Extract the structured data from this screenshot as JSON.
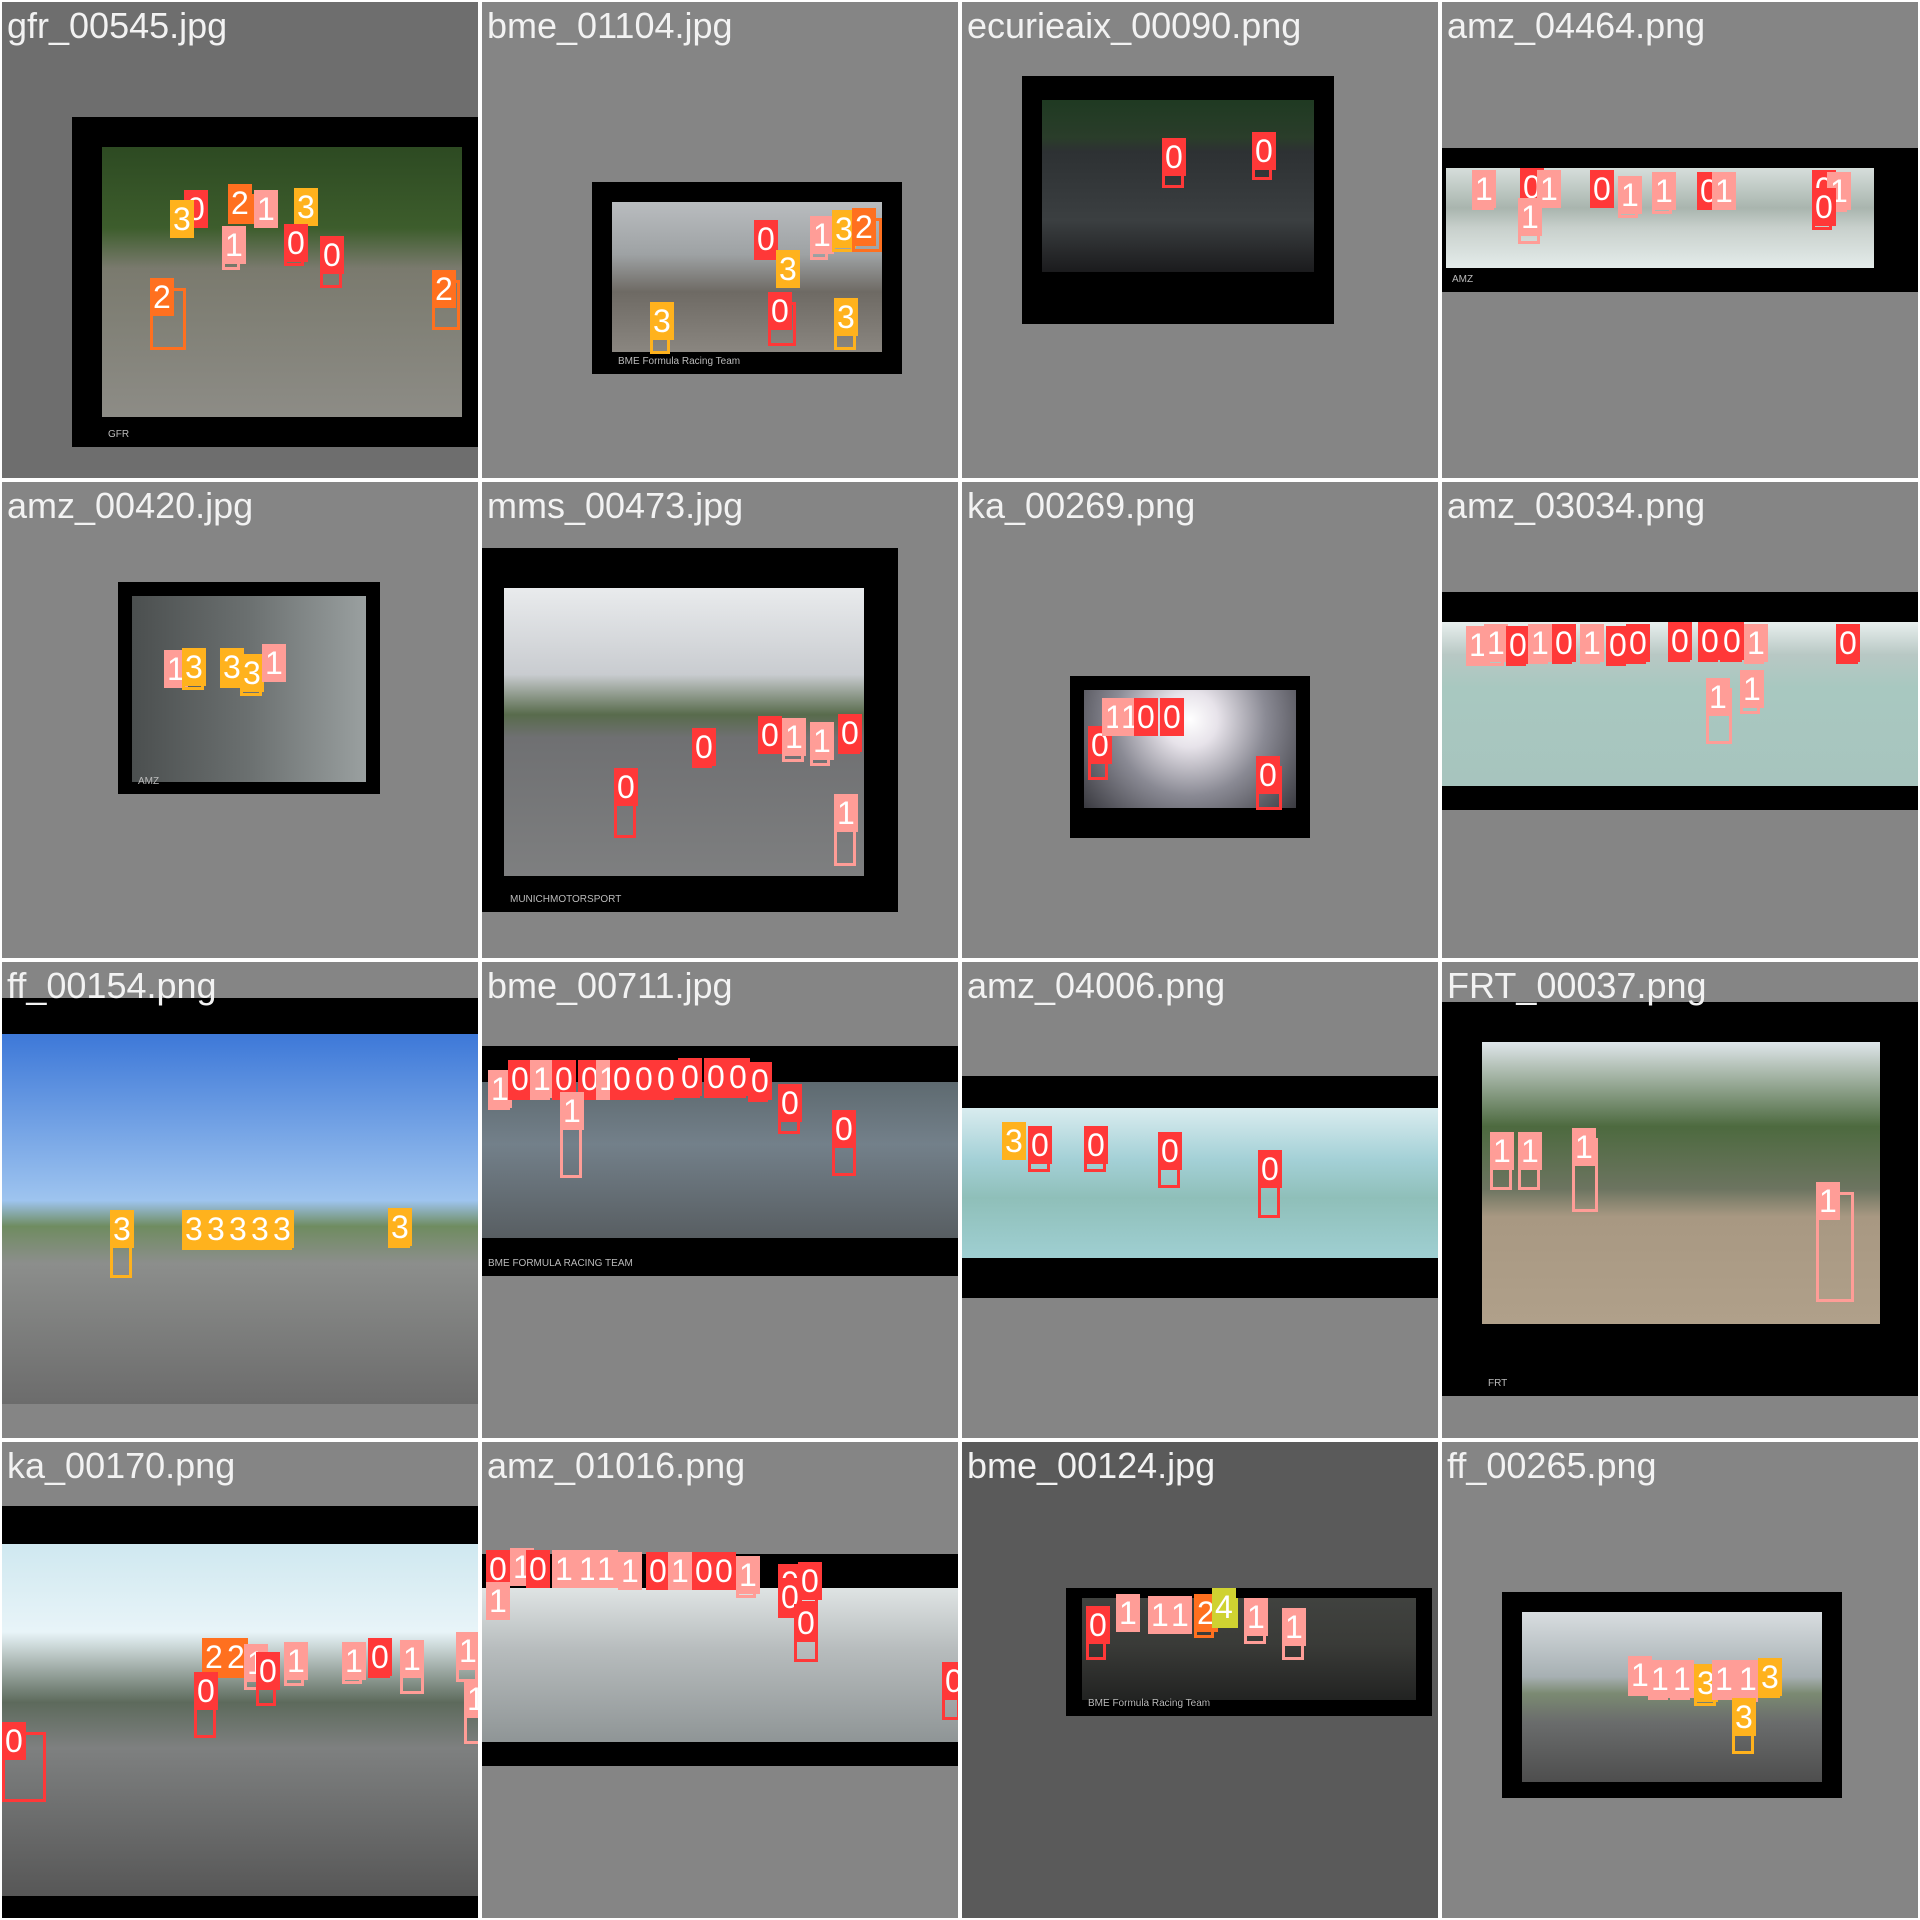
{
  "colors": {
    "class_0": "#ff3838",
    "class_1": "#ff9d97",
    "class_2": "#ff701f",
    "class_3": "#ffb21d",
    "class_4": "#cfd231"
  },
  "tiles": [
    {
      "file": "gfr_00545.jpg",
      "bg": "#6e6e6e",
      "frame": [
        70,
        115,
        410,
        330
      ],
      "photo": [
        100,
        145,
        360,
        270
      ],
      "scene": "trees",
      "wm": "GFR",
      "dets": [
        [
          "0",
          182,
          198,
          22,
          26
        ],
        [
          "2",
          226,
          192,
          26,
          30
        ],
        [
          "1",
          252,
          198,
          22,
          24
        ],
        [
          "3",
          292,
          196,
          22,
          28
        ],
        [
          "0",
          282,
          232,
          20,
          32
        ],
        [
          "0",
          318,
          244,
          22,
          42
        ],
        [
          "2",
          148,
          286,
          36,
          62
        ],
        [
          "2",
          430,
          278,
          28,
          50
        ],
        [
          "3",
          168,
          208,
          16,
          26
        ],
        [
          "1",
          220,
          234,
          18,
          34
        ]
      ]
    },
    {
      "file": "bme_01104.jpg",
      "bg": "#858585",
      "frame": [
        110,
        180,
        310,
        192
      ],
      "photo": [
        130,
        200,
        270,
        150
      ],
      "scene": "warehouse",
      "wm": "BME Formula Racing Team",
      "dets": [
        [
          "0",
          272,
          228,
          24,
          30
        ],
        [
          "3",
          294,
          258,
          22,
          28
        ],
        [
          "0",
          286,
          300,
          28,
          44
        ],
        [
          "3",
          168,
          310,
          20,
          42
        ],
        [
          "3",
          352,
          306,
          22,
          42
        ],
        [
          "1",
          328,
          224,
          18,
          34
        ],
        [
          "3",
          350,
          218,
          22,
          32
        ],
        [
          "2",
          370,
          216,
          30,
          34
        ]
      ]
    },
    {
      "file": "ecurieaix_00090.png",
      "bg": "#858585",
      "frame": [
        60,
        74,
        312,
        248
      ],
      "photo": [
        80,
        98,
        272,
        172
      ],
      "scene": "track",
      "wm": "",
      "dets": [
        [
          "0",
          200,
          146,
          22,
          40
        ],
        [
          "0",
          290,
          140,
          20,
          38
        ]
      ]
    },
    {
      "file": "amz_04464.png",
      "bg": "#858585",
      "frame": [
        0,
        146,
        476,
        144
      ],
      "photo": [
        4,
        166,
        428,
        100
      ],
      "scene": "wide",
      "wm": "AMZ",
      "dets": [
        [
          "1",
          30,
          178,
          22,
          30
        ],
        [
          "0",
          78,
          176,
          20,
          28
        ],
        [
          "1",
          95,
          178,
          20,
          28
        ],
        [
          "0",
          148,
          178,
          20,
          28
        ],
        [
          "1",
          176,
          184,
          20,
          32
        ],
        [
          "1",
          210,
          180,
          20,
          32
        ],
        [
          "0",
          255,
          180,
          22,
          28
        ],
        [
          "1",
          270,
          180,
          20,
          28
        ],
        [
          "0",
          370,
          178,
          22,
          34
        ],
        [
          "1",
          385,
          180,
          20,
          30
        ],
        [
          "1",
          76,
          206,
          22,
          36
        ],
        [
          "0",
          370,
          196,
          20,
          32
        ]
      ]
    },
    {
      "file": "amz_00420.jpg",
      "bg": "#858585",
      "frame": [
        116,
        100,
        262,
        212
      ],
      "photo": [
        130,
        114,
        234,
        186
      ],
      "scene": "building",
      "wm": "AMZ",
      "dets": [
        [
          "1",
          162,
          178,
          22,
          28
        ],
        [
          "3",
          180,
          176,
          22,
          32
        ],
        [
          "3",
          218,
          176,
          24,
          30
        ],
        [
          "3",
          238,
          182,
          22,
          32
        ],
        [
          "1",
          260,
          172,
          22,
          28
        ]
      ]
    },
    {
      "file": "mms_00473.jpg",
      "bg": "#858585",
      "frame": [
        0,
        66,
        416,
        364
      ],
      "photo": [
        22,
        106,
        360,
        288
      ],
      "scene": "field",
      "wm": "MUNICHMOTORSPORT",
      "dets": [
        [
          "0",
          210,
          256,
          20,
          30
        ],
        [
          "0",
          276,
          244,
          22,
          28
        ],
        [
          "1",
          300,
          246,
          22,
          34
        ],
        [
          "1",
          328,
          250,
          20,
          34
        ],
        [
          "0",
          356,
          242,
          22,
          30
        ],
        [
          "0",
          132,
          296,
          22,
          60
        ],
        [
          "1",
          352,
          322,
          22,
          62
        ]
      ]
    },
    {
      "file": "ka_00269.png",
      "bg": "#858585",
      "frame": [
        108,
        194,
        240,
        162
      ],
      "photo": [
        122,
        208,
        212,
        118
      ],
      "scene": "sun",
      "wm": "",
      "dets": [
        [
          "0",
          126,
          254,
          20,
          44
        ],
        [
          "1",
          140,
          226,
          18,
          26
        ],
        [
          "1",
          156,
          226,
          18,
          26
        ],
        [
          "0",
          172,
          226,
          20,
          26
        ],
        [
          "0",
          198,
          226,
          22,
          26
        ],
        [
          "0",
          294,
          284,
          26,
          44
        ]
      ]
    },
    {
      "file": "amz_03034.png",
      "bg": "#858585",
      "frame": [
        0,
        110,
        476,
        218
      ],
      "photo": [
        0,
        140,
        476,
        164
      ],
      "scene": "wide2",
      "wm": "",
      "dets": [
        [
          "1",
          24,
          154,
          22,
          30
        ],
        [
          "1",
          42,
          152,
          20,
          32
        ],
        [
          "0",
          64,
          154,
          20,
          30
        ],
        [
          "1",
          86,
          152,
          20,
          30
        ],
        [
          "0",
          110,
          152,
          20,
          30
        ],
        [
          "1",
          138,
          152,
          20,
          30
        ],
        [
          "0",
          164,
          154,
          20,
          30
        ],
        [
          "0",
          184,
          152,
          20,
          30
        ],
        [
          "0",
          226,
          150,
          22,
          30
        ],
        [
          "0",
          256,
          150,
          20,
          30
        ],
        [
          "0",
          278,
          150,
          22,
          30
        ],
        [
          "1",
          302,
          152,
          20,
          30
        ],
        [
          "1",
          298,
          198,
          20,
          34
        ],
        [
          "0",
          394,
          152,
          22,
          30
        ],
        [
          "1",
          264,
          206,
          26,
          56
        ]
      ]
    },
    {
      "file": "ff_00154.png",
      "bg": "#858585",
      "frame": [
        0,
        36,
        476,
        406
      ],
      "photo": [
        0,
        72,
        476,
        370
      ],
      "scene": "sky",
      "wm": "",
      "dets": [
        [
          "3",
          108,
          258,
          22,
          58
        ],
        [
          "3",
          180,
          258,
          22,
          30
        ],
        [
          "3",
          202,
          258,
          22,
          30
        ],
        [
          "3",
          224,
          258,
          22,
          30
        ],
        [
          "3",
          246,
          258,
          22,
          30
        ],
        [
          "3",
          268,
          258,
          22,
          30
        ],
        [
          "3",
          386,
          256,
          22,
          30
        ]
      ]
    },
    {
      "file": "bme_00711.jpg",
      "bg": "#858585",
      "frame": [
        0,
        84,
        476,
        230
      ],
      "photo": [
        0,
        120,
        476,
        156
      ],
      "scene": "tarmac",
      "wm": "BME FORMULA RACING TEAM",
      "dets": [
        [
          "1",
          6,
          118,
          22,
          30
        ],
        [
          "0",
          26,
          108,
          22,
          30
        ],
        [
          "1",
          48,
          108,
          20,
          30
        ],
        [
          "0",
          70,
          108,
          22,
          30
        ],
        [
          "0",
          96,
          108,
          22,
          30
        ],
        [
          "1",
          114,
          108,
          20,
          30
        ],
        [
          "0",
          128,
          108,
          22,
          30
        ],
        [
          "0",
          150,
          108,
          22,
          30
        ],
        [
          "0",
          172,
          108,
          20,
          30
        ],
        [
          "0",
          196,
          106,
          22,
          30
        ],
        [
          "0",
          222,
          106,
          22,
          30
        ],
        [
          "0",
          244,
          106,
          20,
          30
        ],
        [
          "0",
          266,
          110,
          20,
          30
        ],
        [
          "1",
          78,
          140,
          22,
          76
        ],
        [
          "0",
          296,
          132,
          22,
          40
        ],
        [
          "0",
          350,
          158,
          24,
          56
        ]
      ]
    },
    {
      "file": "amz_04006.png",
      "bg": "#858585",
      "frame": [
        0,
        114,
        476,
        222
      ],
      "photo": [
        0,
        146,
        476,
        150
      ],
      "scene": "wide3",
      "wm": "",
      "dets": [
        [
          "3",
          40,
          170,
          22,
          26
        ],
        [
          "0",
          66,
          174,
          22,
          36
        ],
        [
          "0",
          122,
          174,
          22,
          36
        ],
        [
          "0",
          196,
          180,
          22,
          46
        ],
        [
          "0",
          296,
          198,
          22,
          58
        ]
      ]
    },
    {
      "file": "FRT_00037.png",
      "bg": "#858585",
      "frame": [
        0,
        40,
        476,
        394
      ],
      "photo": [
        40,
        80,
        398,
        282
      ],
      "scene": "parking",
      "wm": "FRT",
      "dets": [
        [
          "1",
          48,
          180,
          22,
          48
        ],
        [
          "1",
          76,
          180,
          22,
          48
        ],
        [
          "1",
          130,
          176,
          26,
          74
        ],
        [
          "1",
          374,
          230,
          38,
          110
        ]
      ]
    },
    {
      "file": "ka_00170.png",
      "bg": "#858585",
      "frame": [
        0,
        64,
        476,
        412
      ],
      "photo": [
        0,
        102,
        476,
        352
      ],
      "scene": "cityair",
      "wm": "",
      "dets": [
        [
          "2",
          200,
          206,
          22,
          30
        ],
        [
          "2",
          222,
          206,
          22,
          30
        ],
        [
          "1",
          242,
          212,
          20,
          36
        ],
        [
          "0",
          254,
          220,
          20,
          44
        ],
        [
          "1",
          282,
          210,
          20,
          34
        ],
        [
          "1",
          340,
          210,
          20,
          32
        ],
        [
          "0",
          366,
          206,
          22,
          30
        ],
        [
          "1",
          398,
          208,
          24,
          44
        ],
        [
          "1",
          454,
          200,
          22,
          40
        ],
        [
          "0",
          192,
          240,
          22,
          56
        ],
        [
          "1",
          462,
          248,
          20,
          54
        ],
        [
          "0",
          0,
          290,
          44,
          70
        ]
      ]
    },
    {
      "file": "amz_01016.png",
      "bg": "#858585",
      "frame": [
        0,
        112,
        476,
        212
      ],
      "photo": [
        0,
        146,
        476,
        154
      ],
      "scene": "wide4",
      "wm": "",
      "dets": [
        [
          "0",
          4,
          118,
          20,
          28
        ],
        [
          "1",
          28,
          116,
          22,
          28
        ],
        [
          "0",
          44,
          118,
          20,
          28
        ],
        [
          "1",
          70,
          118,
          20,
          28
        ],
        [
          "1",
          94,
          118,
          20,
          28
        ],
        [
          "1",
          112,
          118,
          20,
          28
        ],
        [
          "1",
          136,
          120,
          20,
          28
        ],
        [
          "0",
          164,
          120,
          20,
          28
        ],
        [
          "1",
          186,
          120,
          20,
          28
        ],
        [
          "0",
          210,
          120,
          22,
          28
        ],
        [
          "0",
          230,
          120,
          22,
          28
        ],
        [
          "1",
          254,
          124,
          20,
          32
        ],
        [
          "0",
          296,
          132,
          22,
          32
        ],
        [
          "0",
          316,
          130,
          20,
          32
        ],
        [
          "1",
          4,
          150,
          22,
          28
        ],
        [
          "0",
          296,
          146,
          20,
          30
        ],
        [
          "0",
          312,
          172,
          24,
          48
        ],
        [
          "0",
          460,
          230,
          18,
          48
        ]
      ]
    },
    {
      "file": "bme_00124.jpg",
      "bg": "#5a5a5a",
      "frame": [
        104,
        146,
        366,
        128
      ],
      "photo": [
        120,
        156,
        334,
        102
      ],
      "scene": "dark",
      "wm": "BME Formula Racing Team",
      "dets": [
        [
          "0",
          124,
          174,
          20,
          44
        ],
        [
          "1",
          154,
          162,
          22,
          28
        ],
        [
          "1",
          186,
          164,
          22,
          28
        ],
        [
          "1",
          206,
          164,
          22,
          28
        ],
        [
          "2",
          232,
          162,
          20,
          34
        ],
        [
          "4",
          250,
          156,
          26,
          30
        ],
        [
          "1",
          282,
          166,
          22,
          36
        ],
        [
          "1",
          320,
          176,
          22,
          42
        ]
      ]
    },
    {
      "file": "ff_00265.png",
      "bg": "#858585",
      "frame": [
        60,
        150,
        340,
        206
      ],
      "photo": [
        80,
        170,
        300,
        170
      ],
      "scene": "kart",
      "wm": "",
      "dets": [
        [
          "1",
          186,
          224,
          20,
          30
        ],
        [
          "1",
          206,
          228,
          20,
          30
        ],
        [
          "1",
          228,
          228,
          20,
          30
        ],
        [
          "3",
          252,
          232,
          22,
          32
        ],
        [
          "1",
          270,
          228,
          20,
          30
        ],
        [
          "1",
          294,
          228,
          22,
          32
        ],
        [
          "3",
          316,
          226,
          22,
          30
        ],
        [
          "3",
          290,
          266,
          22,
          46
        ]
      ]
    }
  ]
}
